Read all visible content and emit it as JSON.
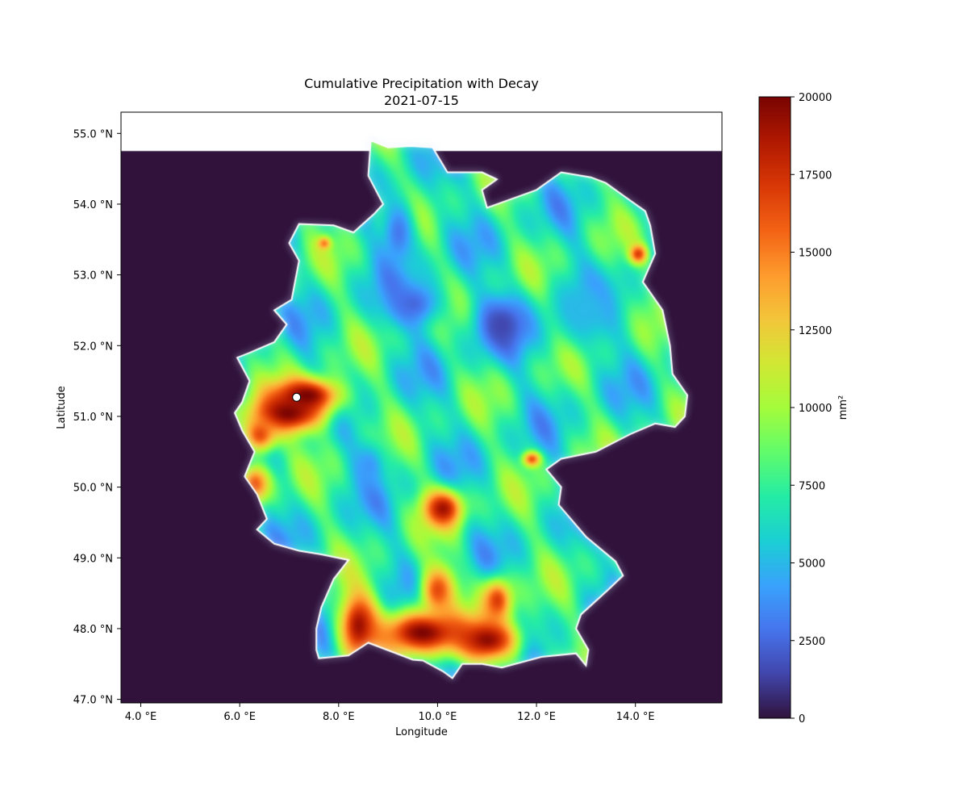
{
  "chart_data": {
    "type": "heatmap",
    "title": "Cumulative Precipitation with Decay",
    "subtitle": "2021-07-15",
    "xlabel": "Longitude",
    "ylabel": "Latitude",
    "xlim": [
      3.6,
      15.75
    ],
    "ylim": [
      46.95,
      55.3
    ],
    "data_top_lat": 54.75,
    "x_ticks": [
      4.0,
      6.0,
      8.0,
      10.0,
      12.0,
      14.0
    ],
    "x_tick_labels": [
      "4.0 °E",
      "6.0 °E",
      "8.0 °E",
      "10.0 °E",
      "12.0 °E",
      "14.0 °E"
    ],
    "y_ticks": [
      47.0,
      48.0,
      49.0,
      50.0,
      51.0,
      52.0,
      53.0,
      54.0,
      55.0
    ],
    "y_tick_labels": [
      "47.0 °N",
      "48.0 °N",
      "49.0 °N",
      "50.0 °N",
      "51.0 °N",
      "52.0 °N",
      "53.0 °N",
      "54.0 °N",
      "55.0 °N"
    ],
    "colorbar": {
      "label": "mm²",
      "min": 0,
      "max": 20000,
      "ticks": [
        0,
        2500,
        5000,
        7500,
        10000,
        12500,
        15000,
        17500,
        20000
      ],
      "tick_labels": [
        "0",
        "2500",
        "5000",
        "7500",
        "10000",
        "12500",
        "15000",
        "17500",
        "20000"
      ]
    },
    "colormap": [
      "#30123b",
      "#4145ab",
      "#4675ed",
      "#39a2fc",
      "#1bcfd4",
      "#24eca6",
      "#61fc6c",
      "#a4fc3b",
      "#d1e834",
      "#f3c63a",
      "#fe9b2d",
      "#f36315",
      "#d93806",
      "#b11901",
      "#7a0402"
    ],
    "background_value": 0,
    "marker": {
      "lon": 7.15,
      "lat": 51.27
    },
    "region_outline": [
      [
        7.6,
        47.58
      ],
      [
        8.2,
        47.62
      ],
      [
        8.6,
        47.8
      ],
      [
        9.5,
        47.56
      ],
      [
        9.7,
        47.55
      ],
      [
        10.1,
        47.4
      ],
      [
        10.3,
        47.3
      ],
      [
        10.5,
        47.5
      ],
      [
        10.9,
        47.5
      ],
      [
        11.3,
        47.45
      ],
      [
        12.1,
        47.6
      ],
      [
        12.8,
        47.65
      ],
      [
        13.0,
        47.48
      ],
      [
        13.05,
        47.7
      ],
      [
        12.8,
        48.0
      ],
      [
        12.9,
        48.2
      ],
      [
        13.45,
        48.55
      ],
      [
        13.75,
        48.75
      ],
      [
        13.6,
        48.95
      ],
      [
        13.0,
        49.3
      ],
      [
        12.45,
        49.75
      ],
      [
        12.5,
        50.0
      ],
      [
        12.2,
        50.25
      ],
      [
        12.5,
        50.4
      ],
      [
        13.2,
        50.5
      ],
      [
        13.9,
        50.75
      ],
      [
        14.4,
        50.9
      ],
      [
        14.8,
        50.85
      ],
      [
        15.0,
        51.0
      ],
      [
        15.05,
        51.3
      ],
      [
        14.75,
        51.6
      ],
      [
        14.7,
        52.0
      ],
      [
        14.55,
        52.5
      ],
      [
        14.15,
        52.9
      ],
      [
        14.4,
        53.3
      ],
      [
        14.3,
        53.7
      ],
      [
        14.2,
        53.9
      ],
      [
        13.8,
        54.1
      ],
      [
        13.4,
        54.3
      ],
      [
        13.1,
        54.38
      ],
      [
        12.5,
        54.45
      ],
      [
        12.0,
        54.2
      ],
      [
        11.4,
        54.05
      ],
      [
        11.0,
        53.95
      ],
      [
        10.9,
        54.2
      ],
      [
        11.2,
        54.35
      ],
      [
        10.9,
        54.45
      ],
      [
        10.2,
        54.45
      ],
      [
        9.9,
        54.8
      ],
      [
        9.45,
        54.82
      ],
      [
        9.0,
        54.8
      ],
      [
        8.65,
        54.9
      ],
      [
        8.6,
        54.4
      ],
      [
        8.9,
        54.0
      ],
      [
        8.7,
        53.85
      ],
      [
        8.3,
        53.6
      ],
      [
        7.9,
        53.7
      ],
      [
        7.2,
        53.72
      ],
      [
        7.0,
        53.45
      ],
      [
        7.2,
        53.2
      ],
      [
        7.05,
        52.65
      ],
      [
        6.7,
        52.5
      ],
      [
        6.95,
        52.3
      ],
      [
        6.7,
        52.05
      ],
      [
        6.2,
        51.9
      ],
      [
        5.95,
        51.83
      ],
      [
        6.2,
        51.5
      ],
      [
        6.05,
        51.2
      ],
      [
        5.9,
        51.05
      ],
      [
        6.05,
        50.8
      ],
      [
        6.3,
        50.5
      ],
      [
        6.1,
        50.15
      ],
      [
        6.35,
        49.9
      ],
      [
        6.55,
        49.55
      ],
      [
        6.35,
        49.4
      ],
      [
        6.7,
        49.2
      ],
      [
        7.2,
        49.1
      ],
      [
        7.65,
        49.05
      ],
      [
        8.2,
        48.97
      ],
      [
        7.9,
        48.7
      ],
      [
        7.65,
        48.3
      ],
      [
        7.55,
        48.0
      ],
      [
        7.55,
        47.7
      ]
    ],
    "hotspots": [
      {
        "lon": 6.95,
        "lat": 51.05,
        "rx": 0.85,
        "ry": 0.32,
        "value": 20000
      },
      {
        "lon": 7.35,
        "lat": 51.3,
        "rx": 0.75,
        "ry": 0.28,
        "value": 20000
      },
      {
        "lon": 6.4,
        "lat": 50.75,
        "rx": 0.4,
        "ry": 0.3,
        "value": 16500
      },
      {
        "lon": 6.3,
        "lat": 50.05,
        "rx": 0.35,
        "ry": 0.3,
        "value": 16000
      },
      {
        "lon": 8.4,
        "lat": 48.05,
        "rx": 0.45,
        "ry": 0.55,
        "value": 19000
      },
      {
        "lon": 9.7,
        "lat": 47.95,
        "rx": 0.95,
        "ry": 0.35,
        "value": 20000
      },
      {
        "lon": 11.0,
        "lat": 47.85,
        "rx": 0.75,
        "ry": 0.35,
        "value": 19500
      },
      {
        "lon": 10.1,
        "lat": 49.7,
        "rx": 0.45,
        "ry": 0.3,
        "value": 19000
      },
      {
        "lon": 10.0,
        "lat": 48.55,
        "rx": 0.4,
        "ry": 0.4,
        "value": 16500
      },
      {
        "lon": 11.2,
        "lat": 48.4,
        "rx": 0.35,
        "ry": 0.35,
        "value": 17000
      },
      {
        "lon": 14.05,
        "lat": 53.3,
        "rx": 0.2,
        "ry": 0.15,
        "value": 17000
      },
      {
        "lon": 11.9,
        "lat": 50.4,
        "rx": 0.2,
        "ry": 0.12,
        "value": 16000
      },
      {
        "lon": 7.7,
        "lat": 53.45,
        "rx": 0.15,
        "ry": 0.1,
        "value": 15000
      }
    ],
    "lowspots": [
      {
        "lon": 11.3,
        "lat": 52.3,
        "rx": 0.55,
        "ry": 0.4,
        "value": 1500
      },
      {
        "lon": 9.5,
        "lat": 52.6,
        "rx": 0.6,
        "ry": 0.35,
        "value": 2500
      },
      {
        "lon": 9.2,
        "lat": 53.6,
        "rx": 0.35,
        "ry": 0.5,
        "value": 3000
      },
      {
        "lon": 8.6,
        "lat": 50.3,
        "rx": 0.35,
        "ry": 0.35,
        "value": 4000
      },
      {
        "lon": 13.0,
        "lat": 52.5,
        "rx": 0.7,
        "ry": 0.5,
        "value": 5000
      }
    ],
    "base_value": 7000
  }
}
